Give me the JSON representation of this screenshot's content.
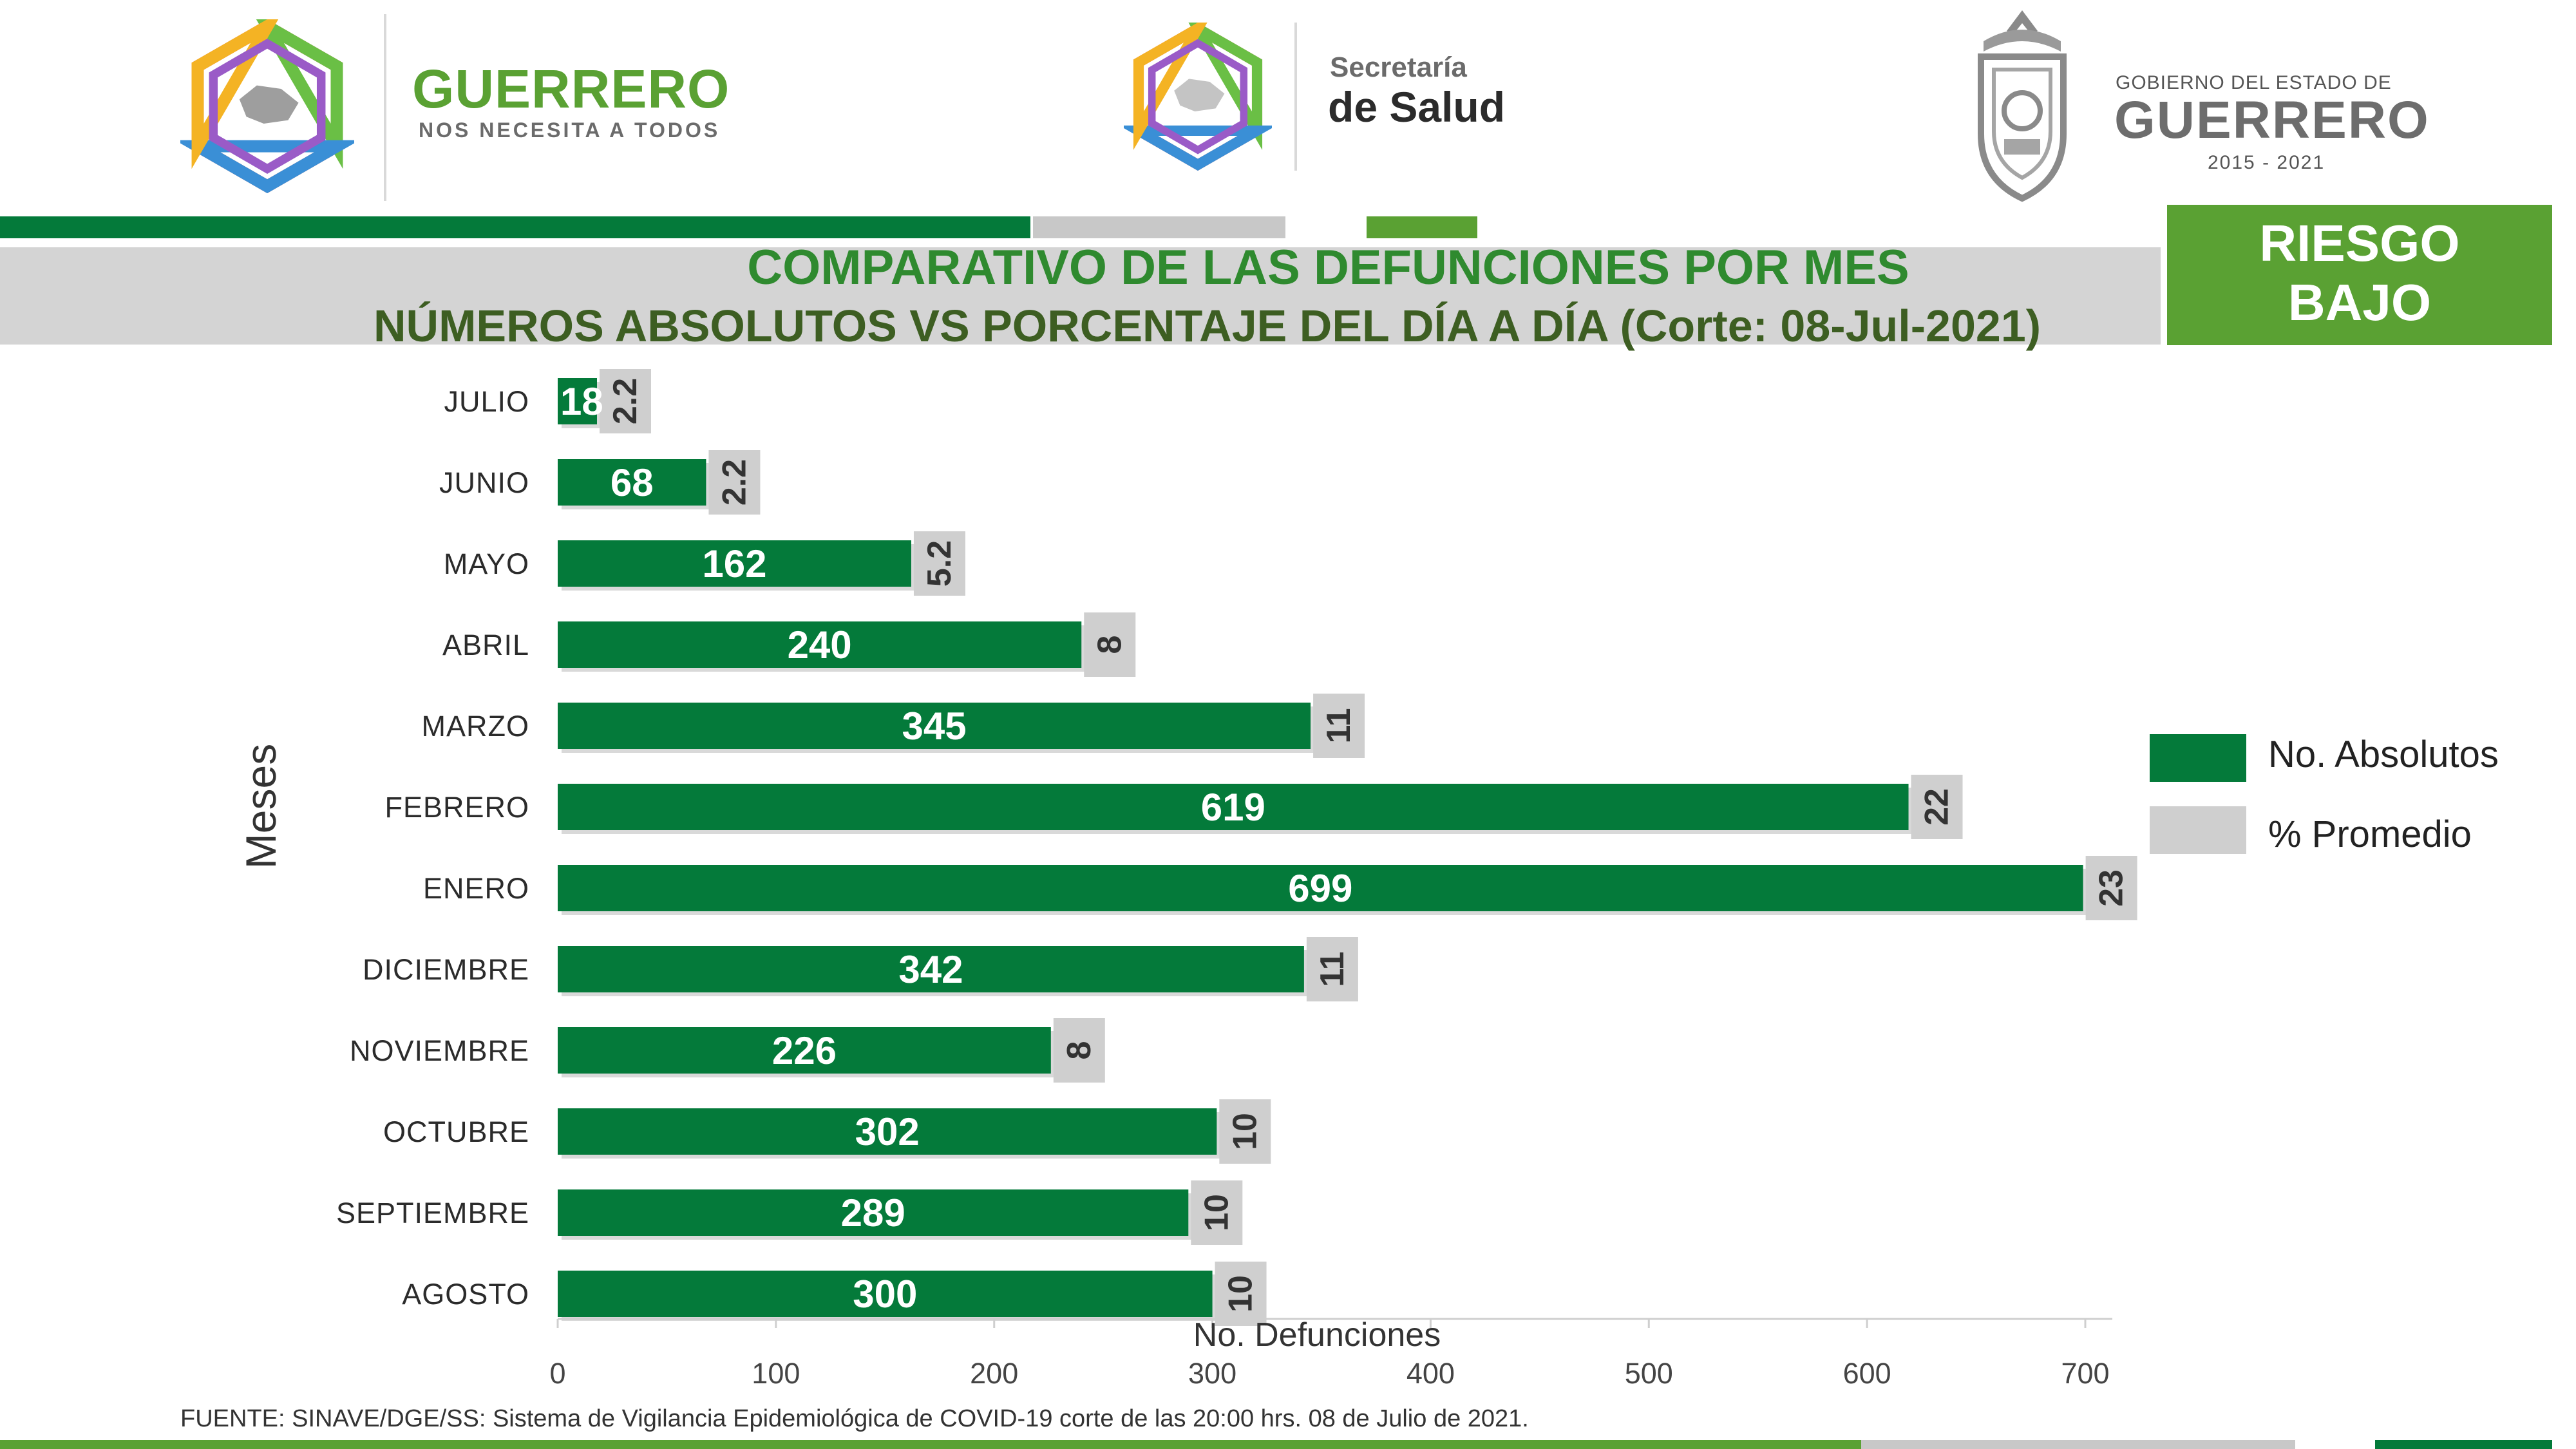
{
  "header": {
    "guerrero_logo": {
      "title": "GUERRERO",
      "tagline": "NOS NECESITA A TODOS"
    },
    "salud_logo": {
      "line1": "Secretaría",
      "line2": "de Salud"
    },
    "gobierno_logo": {
      "line1": "GOBIERNO DEL ESTADO DE",
      "line2": "GUERRERO",
      "line3": "2015 - 2021"
    }
  },
  "title": {
    "line1": "COMPARATIVO DE LAS DEFUNCIONES POR MES",
    "line2": "NÚMEROS ABSOLUTOS VS PORCENTAJE DEL DÍA A DÍA   (Corte: 08-Jul-2021)"
  },
  "risk_badge": {
    "line1": "RIESGO",
    "line2": "BAJO"
  },
  "colors": {
    "absolutos": "#047a3a",
    "promedio": "#cfcfcf",
    "brand_green": "#5aa133",
    "title_green": "#2f8a2f"
  },
  "chart_data": {
    "type": "bar",
    "orientation": "horizontal",
    "ylabel": "Meses",
    "xlabel": "No. Defunciones",
    "xlim": [
      0,
      700
    ],
    "xticks": [
      0,
      100,
      200,
      300,
      400,
      500,
      600,
      700
    ],
    "grid": false,
    "legend_position": "right",
    "categories": [
      "JULIO",
      "JUNIO",
      "MAYO",
      "ABRIL",
      "MARZO",
      "FEBRERO",
      "ENERO",
      "DICIEMBRE",
      "NOVIEMBRE",
      "OCTUBRE",
      "SEPTIEMBRE",
      "AGOSTO"
    ],
    "series": [
      {
        "name": "No. Absolutos",
        "values": [
          18,
          68,
          162,
          240,
          345,
          619,
          699,
          342,
          226,
          302,
          289,
          300
        ]
      },
      {
        "name": "% Promedio",
        "values": [
          2.2,
          2.2,
          5.2,
          8,
          11,
          22,
          23,
          11,
          8,
          10,
          10,
          10
        ]
      }
    ]
  },
  "footer": {
    "source": "FUENTE: SINAVE/DGE/SS: Sistema de Vigilancia Epidemiológica de COVID-19 corte de las 20:00 hrs. 08 de Julio de 2021."
  }
}
